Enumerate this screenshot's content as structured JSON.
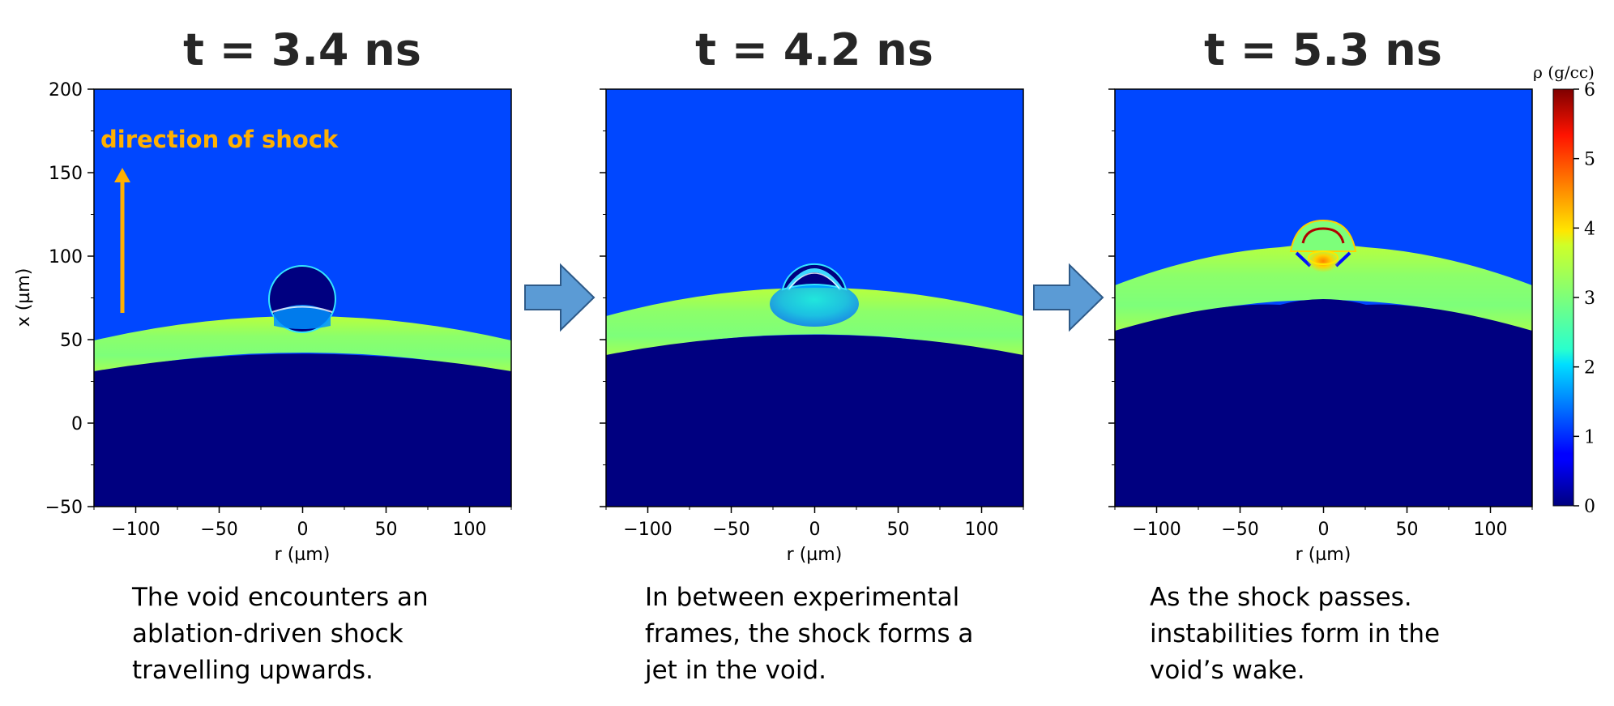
{
  "colors": {
    "low_density": "#000080",
    "background": "#0047ff",
    "shocked_layer": "#7fff5e",
    "annotation": "#ffb000",
    "arrow_fill": "#5b9bd5",
    "arrow_stroke": "#2e5a88"
  },
  "chart_data": [
    {
      "type": "heatmap",
      "title": "t = 3.4 ns",
      "xlabel": "r (µm)",
      "ylabel": "x (µm)",
      "xlim": [
        -125,
        125
      ],
      "ylim": [
        -50,
        200
      ],
      "xticks": [
        -100,
        -50,
        0,
        50,
        100
      ],
      "yticks": [
        -50,
        0,
        50,
        100,
        150,
        200
      ],
      "xtick_labels": [
        "−100",
        "−50",
        "0",
        "50",
        "100"
      ],
      "ytick_labels": [
        "−50",
        "0",
        "50",
        "100",
        "150",
        "200"
      ],
      "features": {
        "void_center": [
          0,
          72
        ],
        "void_radius": 20,
        "layer_top_center": 67,
        "layer_top_edge": 50,
        "layer_bottom_center": 44,
        "layer_bottom_edge": 31
      },
      "annotation": "direction of shock",
      "caption": [
        "The void encounters an",
        "ablation-driven shock",
        "travelling upwards."
      ]
    },
    {
      "type": "heatmap",
      "title": "t = 4.2 ns",
      "xlabel": "r (µm)",
      "xlim": [
        -125,
        125
      ],
      "ylim": [
        -50,
        200
      ],
      "xticks": [
        -100,
        -50,
        0,
        50,
        100
      ],
      "xtick_labels": [
        "−100",
        "−50",
        "0",
        "50",
        "100"
      ],
      "features": {
        "void_center": [
          0,
          80
        ],
        "void_radius": 19,
        "layer_top_center": 83,
        "layer_top_edge": 63,
        "layer_bottom_center": 55,
        "layer_bottom_edge": 41
      },
      "caption": [
        "In between experimental",
        "frames, the shock forms a",
        "jet in the void."
      ]
    },
    {
      "type": "heatmap",
      "title": "t = 5.3 ns",
      "xlabel": "r (µm)",
      "xlim": [
        -125,
        125
      ],
      "ylim": [
        -50,
        200
      ],
      "xticks": [
        -100,
        -50,
        0,
        50,
        100
      ],
      "xtick_labels": [
        "−100",
        "−50",
        "0",
        "50",
        "100"
      ],
      "features": {
        "bump_center": [
          0,
          105
        ],
        "layer_top_center": 103,
        "layer_top_edge": 84,
        "layer_bottom_center": 75,
        "layer_bottom_edge": 56
      },
      "caption": [
        "As the shock passes.",
        "instabilities form in the",
        "void’s wake."
      ]
    }
  ],
  "colorbar": {
    "label": "ρ (g/cc)",
    "min": 0,
    "max": 6,
    "ticks": [
      "0",
      "1",
      "2",
      "3",
      "4",
      "5",
      "6"
    ],
    "colormap": "jet"
  }
}
